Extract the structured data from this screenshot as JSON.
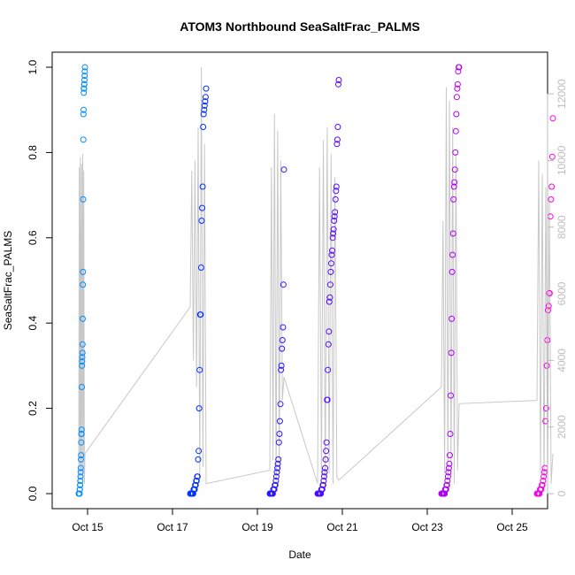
{
  "chart_data": {
    "type": "scatter",
    "title": "ATOM3 Northbound SeaSaltFrac_PALMS",
    "xlabel": "Date",
    "ylabel": "SeaSaltFrac_PALMS",
    "xlim": [
      "2017-10-14T04:00",
      "2017-10-25T20:00"
    ],
    "ylim": [
      0,
      1
    ],
    "y2lim": [
      0,
      12800
    ],
    "x_ticks": [
      "Oct 15",
      "Oct 17",
      "Oct 19",
      "Oct 21",
      "Oct 23",
      "Oct 25"
    ],
    "y_ticks": [
      "0.0",
      "0.2",
      "0.4",
      "0.6",
      "0.8",
      "1.0"
    ],
    "y2_ticks": [
      "0",
      "2000",
      "4000",
      "6000",
      "8000",
      "10000",
      "12000"
    ],
    "color_gradient": [
      "#00a6ff",
      "#0022ff",
      "#7a00ff",
      "#ff00e6"
    ],
    "altitude_color": "#c8c8c8",
    "flights": [
      {
        "start": "2017-10-14T19:00",
        "end": "2017-10-14T22:30",
        "seasalt_points": [
          0.0,
          0.0,
          0.0,
          0.0,
          0.0,
          0.0,
          0.0,
          0.01,
          0.01,
          0.02,
          0.02,
          0.03,
          0.04,
          0.05,
          0.06,
          0.08,
          0.09,
          0.12,
          0.14,
          0.14,
          0.15,
          0.25,
          0.3,
          0.31,
          0.32,
          0.33,
          0.35,
          0.41,
          0.49,
          0.52,
          0.69,
          0.83,
          0.89,
          0.9,
          0.94,
          0.95,
          0.95,
          0.96,
          0.96,
          0.97,
          0.98,
          0.99,
          1.0
        ],
        "altitude_m": [
          300,
          9800,
          500,
          10100,
          700,
          9900,
          400,
          10200,
          600,
          9700,
          300,
          1200
        ]
      },
      {
        "start": "2017-10-17T10:00",
        "end": "2017-10-17T19:00",
        "seasalt_points": [
          0.0,
          0.0,
          0.0,
          0.0,
          0.0,
          0.0,
          0.0,
          0.01,
          0.01,
          0.01,
          0.02,
          0.02,
          0.03,
          0.03,
          0.04,
          0.04,
          0.08,
          0.1,
          0.2,
          0.29,
          0.42,
          0.42,
          0.53,
          0.64,
          0.67,
          0.72,
          0.86,
          0.89,
          0.9,
          0.91,
          0.92,
          0.93,
          0.95
        ],
        "altitude_m": [
          5600,
          9700,
          4000,
          10000,
          3200,
          11000,
          500,
          12800,
          800,
          10500,
          300
        ]
      },
      {
        "start": "2017-10-19T07:00",
        "end": "2017-10-19T15:00",
        "seasalt_points": [
          0.0,
          0.0,
          0.0,
          0.0,
          0.0,
          0.0,
          0.0,
          0.01,
          0.01,
          0.01,
          0.02,
          0.02,
          0.03,
          0.04,
          0.05,
          0.06,
          0.07,
          0.08,
          0.12,
          0.14,
          0.17,
          0.21,
          0.29,
          0.3,
          0.34,
          0.36,
          0.39,
          0.49,
          0.76
        ],
        "altitude_m": [
          700,
          9800,
          1000,
          11400,
          300,
          10900,
          600,
          10000,
          2800,
          3500
        ]
      },
      {
        "start": "2017-10-20T10:00",
        "end": "2017-10-20T22:00",
        "seasalt_points": [
          0.0,
          0.0,
          0.0,
          0.0,
          0.0,
          0.0,
          0.0,
          0.0,
          0.01,
          0.01,
          0.01,
          0.02,
          0.02,
          0.03,
          0.04,
          0.05,
          0.06,
          0.08,
          0.1,
          0.12,
          0.22,
          0.22,
          0.29,
          0.35,
          0.38,
          0.45,
          0.46,
          0.49,
          0.52,
          0.54,
          0.56,
          0.57,
          0.6,
          0.61,
          0.62,
          0.64,
          0.65,
          0.66,
          0.69,
          0.71,
          0.72,
          0.82,
          0.83,
          0.86,
          0.96,
          0.97
        ],
        "altitude_m": [
          300,
          9800,
          500,
          10600,
          400,
          11000,
          600,
          10200,
          300,
          9500,
          500,
          400
        ]
      },
      {
        "start": "2017-10-23T08:00",
        "end": "2017-10-23T18:00",
        "seasalt_points": [
          0.0,
          0.0,
          0.0,
          0.0,
          0.0,
          0.0,
          0.0,
          0.0,
          0.01,
          0.01,
          0.01,
          0.02,
          0.02,
          0.03,
          0.04,
          0.05,
          0.06,
          0.07,
          0.09,
          0.14,
          0.23,
          0.33,
          0.41,
          0.52,
          0.56,
          0.61,
          0.69,
          0.72,
          0.73,
          0.76,
          0.8,
          0.85,
          0.89,
          0.93,
          0.95,
          0.96,
          0.99,
          1.0,
          1.0
        ],
        "altitude_m": [
          3200,
          8200,
          600,
          12200,
          400,
          11800,
          500,
          11000,
          300,
          10200,
          700,
          2700
        ]
      },
      {
        "start": "2017-10-25T14:00",
        "end": "2017-10-25T23:00",
        "seasalt_points": [
          0.0,
          0.0,
          0.0,
          0.0,
          0.0,
          0.01,
          0.01,
          0.01,
          0.02,
          0.02,
          0.03,
          0.04,
          0.05,
          0.06,
          0.17,
          0.2,
          0.3,
          0.36,
          0.43,
          0.44,
          0.47,
          0.47,
          0.65,
          0.69,
          0.72,
          0.79,
          0.88
        ],
        "altitude_m": [
          2800,
          10000,
          600,
          9600,
          400,
          9200,
          500,
          8800,
          300,
          1200
        ]
      }
    ]
  }
}
